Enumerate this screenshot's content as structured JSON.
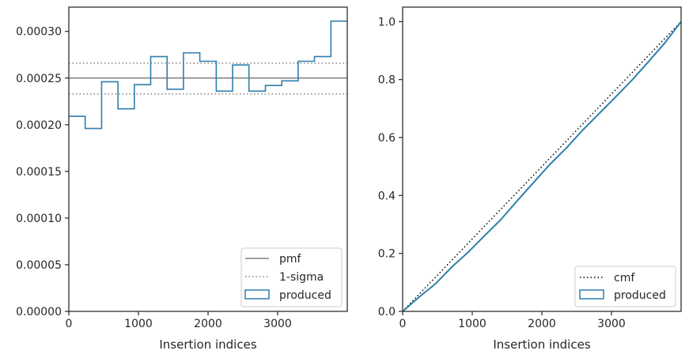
{
  "colors": {
    "produced": "#2e7fae",
    "pmf": "#808080",
    "sigma": "#808080",
    "cmf": "#000000",
    "axis": "#262626"
  },
  "chart_data": [
    {
      "type": "line",
      "xlabel": "Insertion indices",
      "xlim": [
        0,
        4000
      ],
      "ylim": [
        0,
        0.000326
      ],
      "xticks": [
        0,
        1000,
        2000,
        3000
      ],
      "xtick_labels": [
        "0",
        "1000",
        "2000",
        "3000"
      ],
      "yticks": [
        0,
        5e-05,
        0.0001,
        0.00015,
        0.0002,
        0.00025,
        0.0003
      ],
      "ytick_labels": [
        "0.00000",
        "0.00005",
        "0.00010",
        "0.00015",
        "0.00020",
        "0.00025",
        "0.00030"
      ],
      "legend_position": "lower-right",
      "legend": [
        "pmf",
        "1-sigma",
        "produced"
      ],
      "pmf": 0.00025,
      "sigma_band": [
        0.000233,
        0.000266
      ],
      "produced_bin_edges": [
        0,
        235,
        471,
        706,
        941,
        1176,
        1412,
        1647,
        1882,
        2118,
        2353,
        2588,
        2824,
        3059,
        3294,
        3529,
        3765,
        4000
      ],
      "produced_values": [
        0.000209,
        0.000196,
        0.000246,
        0.000217,
        0.000243,
        0.000273,
        0.000238,
        0.000277,
        0.000268,
        0.000236,
        0.000264,
        0.000236,
        0.000242,
        0.000247,
        0.000268,
        0.000273,
        0.000311
      ]
    },
    {
      "type": "line",
      "xlabel": "Insertion indices",
      "xlim": [
        0,
        4000
      ],
      "ylim": [
        0,
        1.05
      ],
      "xticks": [
        0,
        1000,
        2000,
        3000
      ],
      "xtick_labels": [
        "0",
        "1000",
        "2000",
        "3000"
      ],
      "yticks": [
        0,
        0.2,
        0.4,
        0.6,
        0.8,
        1.0
      ],
      "ytick_labels": [
        "0.0",
        "0.2",
        "0.4",
        "0.6",
        "0.8",
        "1.0"
      ],
      "legend_position": "lower-right",
      "legend": [
        "cmf",
        "produced"
      ],
      "cmf": {
        "x": [
          0,
          4000
        ],
        "y": [
          0,
          1.0
        ]
      },
      "produced": {
        "x": [
          0,
          235,
          471,
          706,
          941,
          1176,
          1412,
          1647,
          1882,
          2118,
          2353,
          2588,
          2824,
          3059,
          3294,
          3529,
          3765,
          4000
        ],
        "y": [
          0,
          0.049,
          0.095,
          0.153,
          0.204,
          0.261,
          0.317,
          0.382,
          0.445,
          0.508,
          0.564,
          0.626,
          0.683,
          0.74,
          0.798,
          0.861,
          0.926,
          1.0
        ]
      }
    }
  ]
}
